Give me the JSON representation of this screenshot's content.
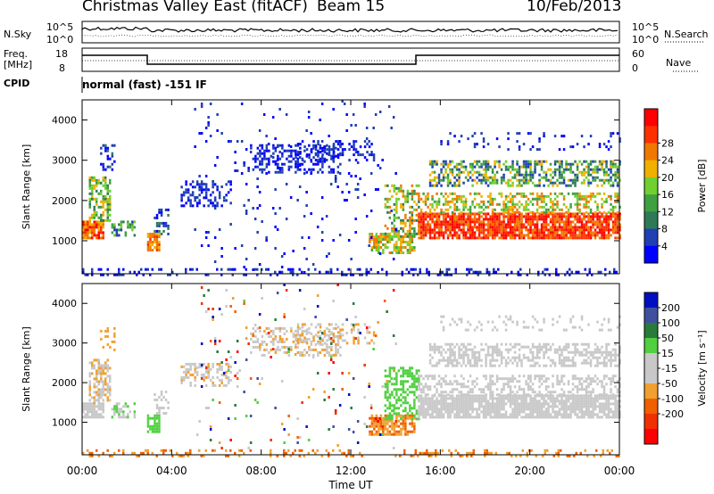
{
  "header": {
    "title": "Christmas Valley East (fitACF)",
    "beam": "Beam 15",
    "date": "10/Feb/2013"
  },
  "colors": {
    "power": [
      "#0000ff",
      "#1f3fb3",
      "#2e7a56",
      "#3fa040",
      "#70d030",
      "#f0b000",
      "#f07800",
      "#ff3000",
      "#ff0000"
    ],
    "velocity": [
      "#0010c0",
      "#4050a0",
      "#2a7a3a",
      "#50d040",
      "#c8c8c8",
      "#c8c8c8",
      "#f0a030",
      "#f06000",
      "#f03000",
      "#ff0000"
    ]
  },
  "panels": {
    "nsky": {
      "label": "N.Sky",
      "right_label": "N.Search",
      "y_ticks": [
        "10^5",
        "10^0"
      ],
      "right_ticks": [
        "10^5",
        "10^0"
      ]
    },
    "freq": {
      "label": "Freq.",
      "unit": "[MHz]",
      "y_ticks": [
        "18",
        "8"
      ],
      "right_ticks": [
        "60",
        "0"
      ],
      "right_label": "Nave"
    },
    "cpid": {
      "label": "CPID",
      "value": "normal (fast) -151 IF"
    }
  },
  "chart_data": [
    {
      "type": "heatmap",
      "name": "Power",
      "ylabel": "Slant Range [km]",
      "xlabel": "Time UT",
      "x_ticks": [
        "00:00",
        "04:00",
        "08:00",
        "12:00",
        "16:00",
        "20:00",
        "00:00"
      ],
      "y_ticks": [
        1000,
        2000,
        3000,
        4000
      ],
      "ylim": [
        180,
        4500
      ],
      "colorbar": {
        "label": "Power [dB]",
        "ticks": [
          4,
          8,
          12,
          16,
          20,
          24,
          28
        ]
      }
    },
    {
      "type": "heatmap",
      "name": "Velocity",
      "ylabel": "Slant Range [km]",
      "xlabel": "Time UT",
      "x_ticks": [
        "00:00",
        "04:00",
        "08:00",
        "12:00",
        "16:00",
        "20:00",
        "00:00"
      ],
      "y_ticks": [
        1000,
        2000,
        3000,
        4000
      ],
      "ylim": [
        180,
        4500
      ],
      "colorbar": {
        "label": "Velocity [m s⁻¹]",
        "ticks": [
          200,
          100,
          50,
          15,
          -15,
          -50,
          -100,
          -200
        ]
      }
    }
  ]
}
